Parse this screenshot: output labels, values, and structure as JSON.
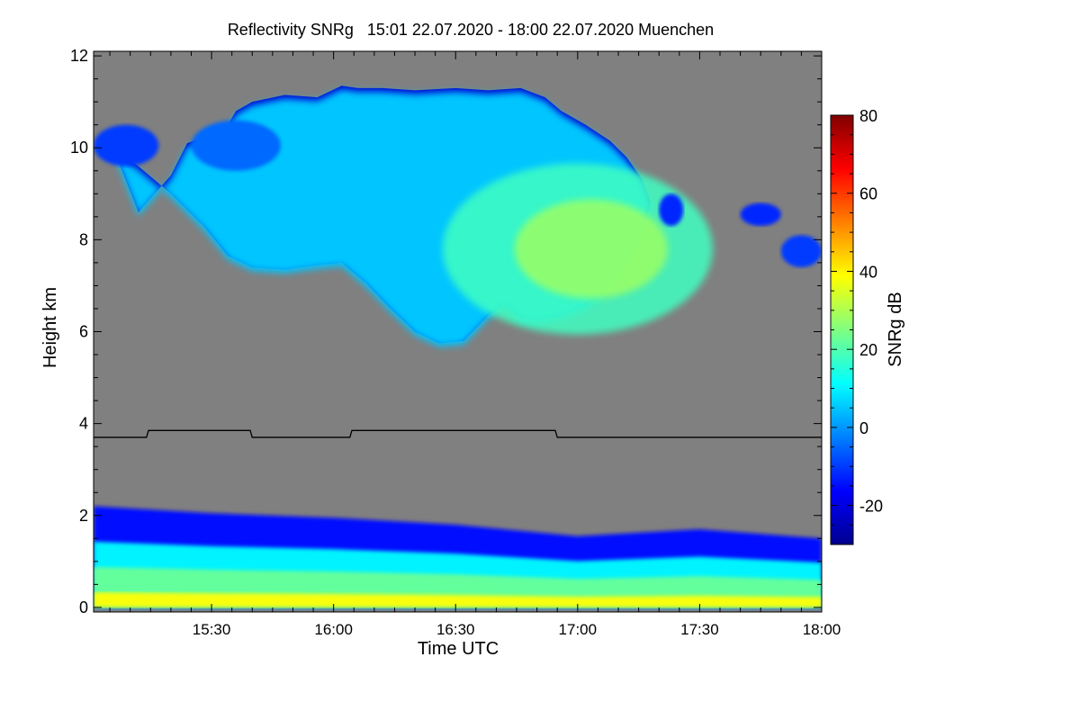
{
  "chart_data": {
    "type": "heatmap",
    "title": "Reflectivity SNRg   15:01 22.07.2020 - 18:00 22.07.2020 Muenchen",
    "xlabel": "Time UTC",
    "ylabel": "Height km",
    "x_range_min": [
      901,
      1080
    ],
    "ylim": [
      -0.1,
      12.1
    ],
    "x_ticks": [
      {
        "label": "15:30",
        "min": 930
      },
      {
        "label": "16:00",
        "min": 960
      },
      {
        "label": "16:30",
        "min": 990
      },
      {
        "label": "17:00",
        "min": 1020
      },
      {
        "label": "17:30",
        "min": 1050
      },
      {
        "label": "18:00",
        "min": 1080
      }
    ],
    "y_ticks": [
      0,
      2,
      4,
      6,
      8,
      10,
      12
    ],
    "colorbar": {
      "label": "SNRg dB",
      "range": [
        -30,
        80
      ],
      "ticks": [
        -20,
        0,
        20,
        40,
        60,
        80
      ],
      "colors": [
        "#00008f",
        "#0000ff",
        "#0080ff",
        "#00ffff",
        "#80ff80",
        "#ffff00",
        "#ff8000",
        "#ff0000",
        "#800000"
      ]
    },
    "background_color": "#808080",
    "cloud": {
      "upper_boundary_km": [
        [
          912,
          8.6
        ],
        [
          920,
          9.4
        ],
        [
          924,
          10.1
        ],
        [
          930,
          10.3
        ],
        [
          934,
          10.5
        ],
        [
          936,
          10.8
        ],
        [
          940,
          11.0
        ],
        [
          948,
          11.15
        ],
        [
          956,
          11.1
        ],
        [
          962,
          11.35
        ],
        [
          966,
          11.3
        ],
        [
          972,
          11.3
        ],
        [
          980,
          11.25
        ],
        [
          990,
          11.3
        ],
        [
          998,
          11.25
        ],
        [
          1006,
          11.3
        ],
        [
          1012,
          11.1
        ],
        [
          1016,
          10.8
        ],
        [
          1022,
          10.5
        ],
        [
          1028,
          10.15
        ],
        [
          1032,
          9.8
        ],
        [
          1036,
          9.3
        ],
        [
          1038,
          8.8
        ]
      ],
      "lower_boundary_km": [
        [
          1038,
          8.8
        ],
        [
          1036,
          8.2
        ],
        [
          1032,
          7.5
        ],
        [
          1028,
          7.0
        ],
        [
          1022,
          6.55
        ],
        [
          1016,
          6.35
        ],
        [
          1010,
          6.25
        ],
        [
          1006,
          6.3
        ],
        [
          1002,
          6.6
        ],
        [
          998,
          6.35
        ],
        [
          992,
          5.8
        ],
        [
          986,
          5.75
        ],
        [
          980,
          6.0
        ],
        [
          974,
          6.5
        ],
        [
          968,
          7.05
        ],
        [
          962,
          7.5
        ],
        [
          956,
          7.45
        ],
        [
          948,
          7.35
        ],
        [
          940,
          7.4
        ],
        [
          934,
          7.65
        ],
        [
          928,
          8.3
        ],
        [
          920,
          9.0
        ],
        [
          912,
          9.6
        ],
        [
          906,
          9.95
        ]
      ],
      "core_center": {
        "min": 1020,
        "km": 7.8,
        "snr_db": 28
      },
      "typical_snr_db": [
        5,
        28
      ]
    },
    "cirrus_patches": [
      {
        "min_start": 901,
        "min_end": 917,
        "km_bottom": 9.6,
        "km_top": 10.5,
        "snr_db": -10
      },
      {
        "min_start": 925,
        "min_end": 947,
        "km_bottom": 9.5,
        "km_top": 10.6,
        "snr_db": -5
      },
      {
        "min_start": 1040,
        "min_end": 1046,
        "km_bottom": 8.3,
        "km_top": 9.0,
        "snr_db": -12
      },
      {
        "min_start": 1060,
        "min_end": 1070,
        "km_bottom": 8.3,
        "km_top": 8.8,
        "snr_db": -12
      },
      {
        "min_start": 1070,
        "min_end": 1080,
        "km_bottom": 7.4,
        "km_top": 8.1,
        "snr_db": -10
      }
    ],
    "boundary_layer": {
      "top_km": [
        [
          901,
          2.2
        ],
        [
          930,
          2.05
        ],
        [
          960,
          1.95
        ],
        [
          990,
          1.8
        ],
        [
          1020,
          1.55
        ],
        [
          1050,
          1.7
        ],
        [
          1080,
          1.5
        ]
      ],
      "snr_db_layers": [
        {
          "km_top": 0.3,
          "snr_db": 38
        },
        {
          "km_top": 0.8,
          "snr_db": 22
        },
        {
          "km_top": 1.3,
          "snr_db": 10
        },
        {
          "km_top": 2.0,
          "snr_db": -15
        }
      ]
    },
    "melting_layer_line_km": [
      [
        901,
        3.7
      ],
      [
        914,
        3.7
      ],
      [
        914.5,
        3.85
      ],
      [
        939.5,
        3.85
      ],
      [
        940,
        3.7
      ],
      [
        964,
        3.7
      ],
      [
        964.5,
        3.85
      ],
      [
        1014.5,
        3.85
      ],
      [
        1015,
        3.7
      ],
      [
        1080,
        3.7
      ]
    ]
  }
}
